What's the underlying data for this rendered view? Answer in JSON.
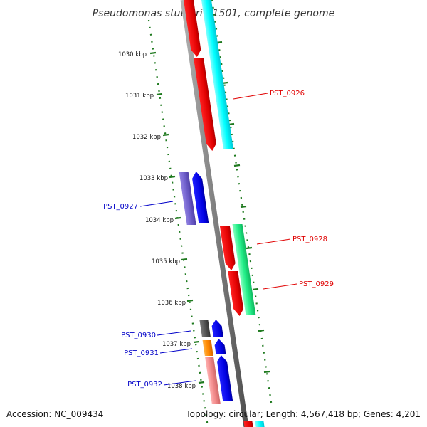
{
  "title": "Pseudomonas stutzeri A1501, complete genome",
  "footer": {
    "accession": "Accession: NC_009434",
    "summary": "Topology: circular; Length: 4,567,418 bp; Genes: 4,201"
  },
  "scale_labels": [
    "1030 kbp",
    "1031 kbp",
    "1032 kbp",
    "1033 kbp",
    "1034 kbp",
    "1035 kbp",
    "1036 kbp",
    "1037 kbp",
    "1038 kbp"
  ],
  "gene_labels": [
    {
      "id": "PST_0926",
      "color": "#e00000"
    },
    {
      "id": "PST_0927",
      "color": "#0000c8"
    },
    {
      "id": "PST_0928",
      "color": "#e00000"
    },
    {
      "id": "PST_0929",
      "color": "#e00000"
    },
    {
      "id": "PST_0930",
      "color": "#0000c8"
    },
    {
      "id": "PST_0931",
      "color": "#0000c8"
    },
    {
      "id": "PST_0932",
      "color": "#0000c8"
    }
  ],
  "colors": {
    "backbone": "#808080",
    "tick": "#1f7a1f",
    "forward_cds": "#ff0000",
    "reverse_cds": "#0000ff",
    "cyan_feature": "#00ffff",
    "green_feature": "#22ee88",
    "purple_feature": "#7060cc",
    "gray_feature": "#555555",
    "orange_feature": "#ff8800",
    "pink_feature": "#f08888"
  }
}
